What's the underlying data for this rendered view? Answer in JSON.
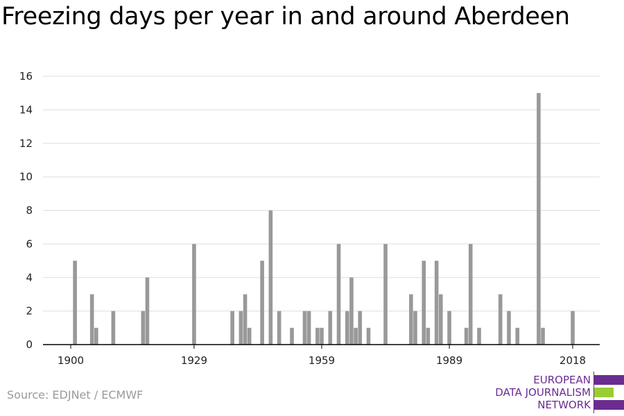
{
  "title": "Freezing days per year in and around Aberdeen",
  "source": "Source: EDJNet / ECMWF",
  "logo": {
    "lines": [
      "EUROPEAN",
      "DATA JOURNALISM",
      "NETWORK"
    ],
    "colors": {
      "purple": "#6b2c91",
      "green": "#9acd32"
    }
  },
  "colors": {
    "bar": "#999999",
    "grid": "#dddddd",
    "axis": "#000000"
  },
  "chart_data": {
    "type": "bar",
    "title": "Freezing days per year in and around Aberdeen",
    "xlabel": "",
    "ylabel": "",
    "xlim": [
      1900,
      2018
    ],
    "ylim": [
      0,
      16
    ],
    "yticks": [
      0,
      2,
      4,
      6,
      8,
      10,
      12,
      14,
      16
    ],
    "xticks": [
      1900,
      1929,
      1959,
      1989,
      2018
    ],
    "grid": true,
    "x": [
      1901,
      1905,
      1906,
      1910,
      1917,
      1918,
      1929,
      1938,
      1940,
      1941,
      1942,
      1945,
      1947,
      1949,
      1952,
      1955,
      1956,
      1958,
      1959,
      1961,
      1963,
      1965,
      1966,
      1967,
      1968,
      1970,
      1974,
      1980,
      1981,
      1983,
      1984,
      1986,
      1987,
      1989,
      1993,
      1994,
      1996,
      2001,
      2003,
      2005,
      2010,
      2011,
      2012,
      2018
    ],
    "values": [
      5,
      3,
      1,
      2,
      2,
      4,
      6,
      2,
      2,
      3,
      1,
      5,
      8,
      2,
      1,
      2,
      2,
      1,
      1,
      2,
      6,
      2,
      4,
      1,
      2,
      1,
      6,
      3,
      2,
      5,
      1,
      5,
      3,
      2,
      1,
      6,
      1,
      3,
      2,
      1,
      15,
      1,
      0,
      2
    ]
  }
}
